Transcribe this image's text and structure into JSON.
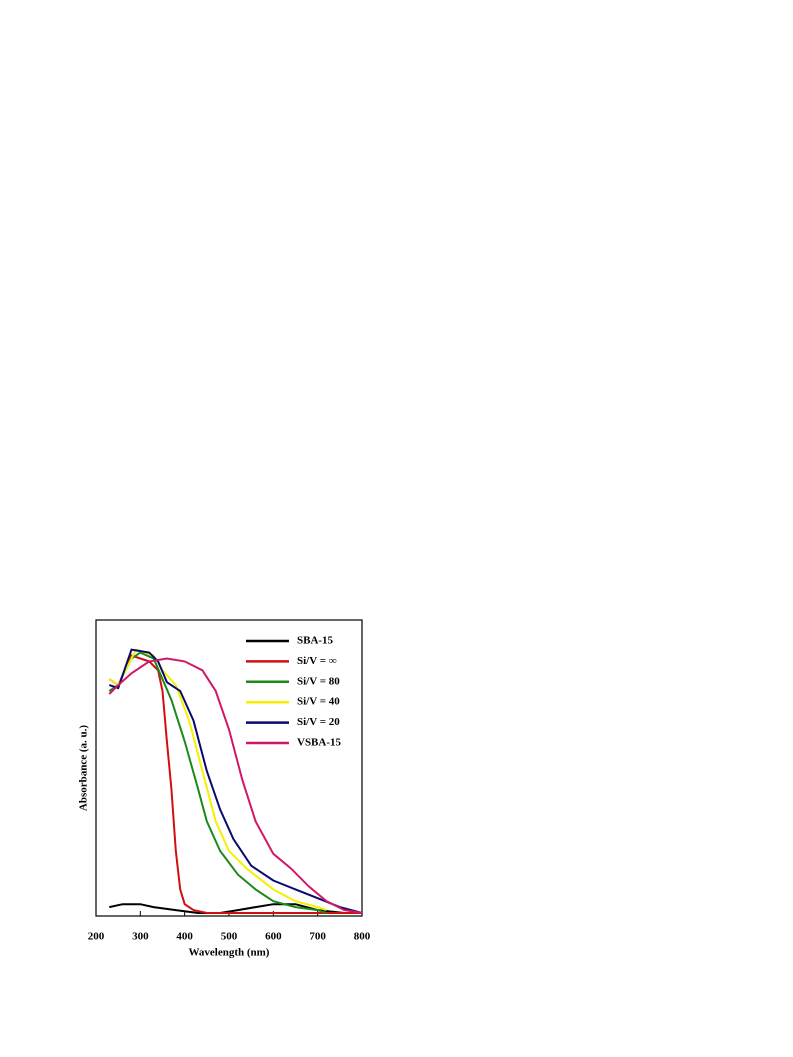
{
  "chart_data": {
    "type": "line",
    "xlabel": "Wavelength (nm)",
    "ylabel": "Absorbance (a. u.)",
    "xlim": [
      200,
      800
    ],
    "xticks": [
      200,
      300,
      400,
      500,
      600,
      700,
      800
    ],
    "ylim": [
      0,
      1
    ],
    "legend": "upper right",
    "series": [
      {
        "name": "SBA-15",
        "color": "#000000",
        "x": [
          230,
          260,
          300,
          330,
          380,
          430,
          480,
          520,
          560,
          600,
          650,
          700,
          760,
          800
        ],
        "values": [
          0.03,
          0.04,
          0.04,
          0.03,
          0.02,
          0.01,
          0.01,
          0.02,
          0.03,
          0.04,
          0.04,
          0.02,
          0.01,
          0.01
        ]
      },
      {
        "name": "Si/V = ∞",
        "color": "#d01010",
        "x": [
          230,
          250,
          280,
          300,
          320,
          340,
          350,
          360,
          370,
          380,
          390,
          400,
          420,
          450,
          500,
          600,
          700,
          800
        ],
        "values": [
          0.8,
          0.78,
          0.88,
          0.87,
          0.86,
          0.83,
          0.76,
          0.59,
          0.43,
          0.22,
          0.09,
          0.04,
          0.02,
          0.01,
          0.01,
          0.01,
          0.01,
          0.01
        ]
      },
      {
        "name": "Si/V = 80",
        "color": "#1a8a1a",
        "x": [
          230,
          250,
          280,
          300,
          330,
          350,
          370,
          400,
          430,
          450,
          480,
          520,
          560,
          600,
          650,
          700,
          720
        ],
        "values": [
          0.76,
          0.78,
          0.87,
          0.89,
          0.87,
          0.8,
          0.73,
          0.59,
          0.43,
          0.32,
          0.22,
          0.14,
          0.09,
          0.05,
          0.03,
          0.02,
          0.01
        ]
      },
      {
        "name": "Si/V = 40",
        "color": "#f5f000",
        "x": [
          230,
          250,
          290,
          330,
          350,
          380,
          410,
          440,
          470,
          500,
          540,
          600,
          650,
          700,
          720
        ],
        "values": [
          0.8,
          0.78,
          0.9,
          0.88,
          0.83,
          0.78,
          0.66,
          0.49,
          0.32,
          0.22,
          0.16,
          0.09,
          0.05,
          0.03,
          0.02
        ]
      },
      {
        "name": "Si/V = 20",
        "color": "#0a0a6e",
        "x": [
          230,
          250,
          280,
          320,
          340,
          360,
          390,
          420,
          450,
          480,
          510,
          550,
          600,
          650,
          700,
          750,
          800
        ],
        "values": [
          0.78,
          0.77,
          0.9,
          0.89,
          0.86,
          0.79,
          0.76,
          0.66,
          0.49,
          0.36,
          0.26,
          0.17,
          0.12,
          0.09,
          0.06,
          0.03,
          0.01
        ]
      },
      {
        "name": "VSBA-15",
        "color": "#d0186a",
        "x": [
          230,
          250,
          280,
          320,
          360,
          400,
          440,
          470,
          500,
          530,
          560,
          600,
          640,
          680,
          720,
          760,
          800
        ],
        "values": [
          0.75,
          0.78,
          0.82,
          0.86,
          0.87,
          0.86,
          0.83,
          0.76,
          0.63,
          0.46,
          0.32,
          0.21,
          0.16,
          0.1,
          0.05,
          0.02,
          0.01
        ]
      }
    ]
  }
}
